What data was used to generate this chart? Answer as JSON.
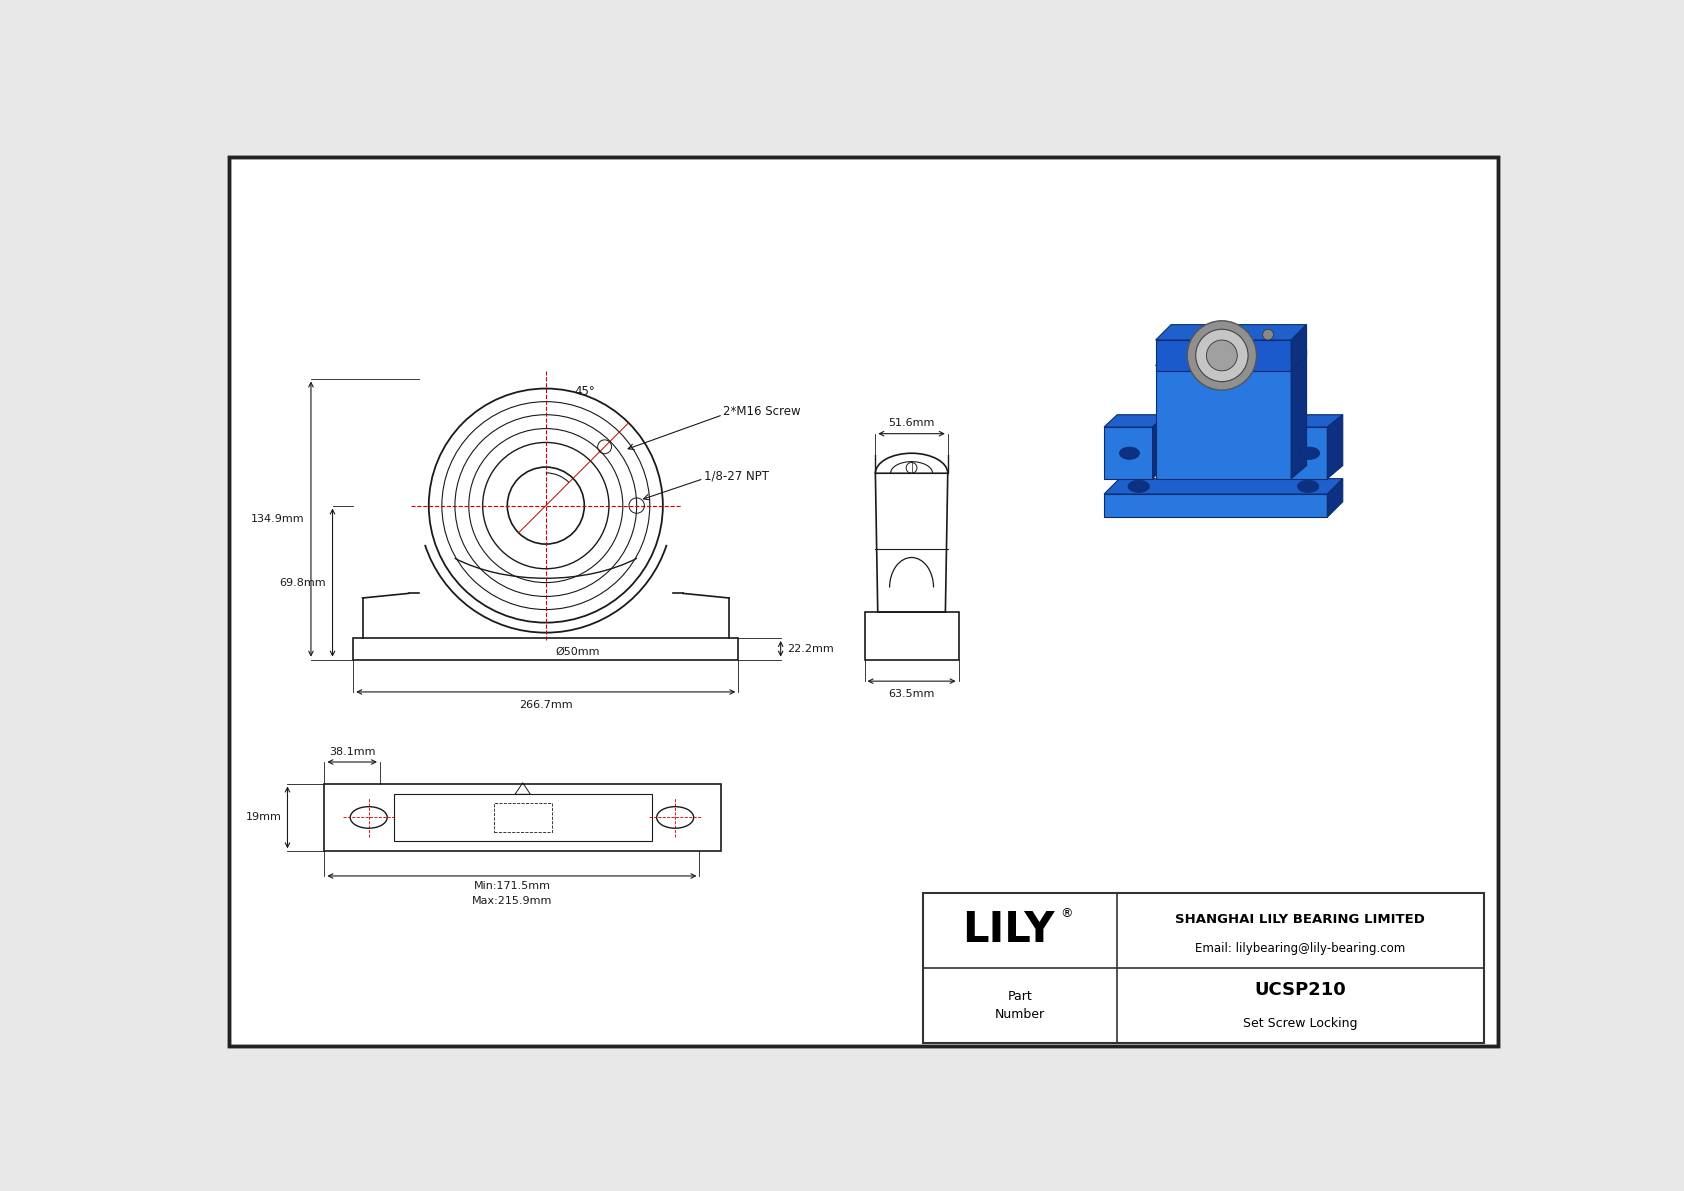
{
  "bg_color": "#e8e8e8",
  "line_color": "#1a1a1a",
  "red_line_color": "#cc0000",
  "title_block": {
    "company": "SHANGHAI LILY BEARING LIMITED",
    "email": "Email: lilybearing@lily-bearing.com",
    "part_number": "UCSP210",
    "locking": "Set Screw Locking"
  },
  "dims": {
    "angle": "45°",
    "screw": "2*M16 Screw",
    "npt": "1/8-27 NPT",
    "diameter": "Ø50mm",
    "width": "266.7mm",
    "height_total": "134.9mm",
    "height_center": "69.8mm",
    "side_top": "51.6mm",
    "side_height": "22.2mm",
    "side_base": "63.5mm",
    "bot_slot": "38.1mm",
    "bot_edge": "19mm",
    "bot_min": "Min:171.5mm",
    "bot_max": "Max:215.9mm"
  },
  "colors": {
    "blue_main": "#1a5acc",
    "blue_dark": "#0d3080",
    "blue_mid": "#2060cc",
    "blue_light": "#2878e0",
    "silver": "#b8b8b8",
    "gray": "#888888"
  }
}
